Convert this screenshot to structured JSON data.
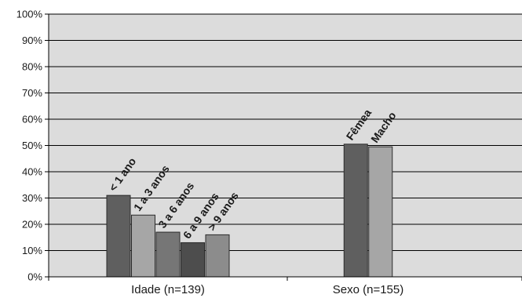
{
  "chart_data": {
    "type": "bar",
    "title": "",
    "xlabel": "",
    "ylabel": "",
    "ylim": [
      0,
      100
    ],
    "y_unit": "%",
    "y_ticks": [
      "0%",
      "10%",
      "20%",
      "30%",
      "40%",
      "50%",
      "60%",
      "70%",
      "80%",
      "90%",
      "100%"
    ],
    "grid": true,
    "plot_background": "#dcdcdc",
    "groups": [
      {
        "label": "Idade (n=139)",
        "bars": [
          {
            "label": "< 1 ano",
            "value": 31,
            "color": "#5f5f5f"
          },
          {
            "label": "1 a 3 anos",
            "value": 23.5,
            "color": "#a6a6a6"
          },
          {
            "label": "3 a 6 anos",
            "value": 17,
            "color": "#767676"
          },
          {
            "label": "6 a 9 anos",
            "value": 13,
            "color": "#4d4d4d"
          },
          {
            "label": "> 9 anos",
            "value": 16,
            "color": "#8c8c8c"
          }
        ]
      },
      {
        "label": "Sexo (n=155)",
        "bars": [
          {
            "label": "Fêmea",
            "value": 50.5,
            "color": "#5f5f5f"
          },
          {
            "label": "Macho",
            "value": 49.5,
            "color": "#a6a6a6"
          }
        ]
      }
    ]
  }
}
